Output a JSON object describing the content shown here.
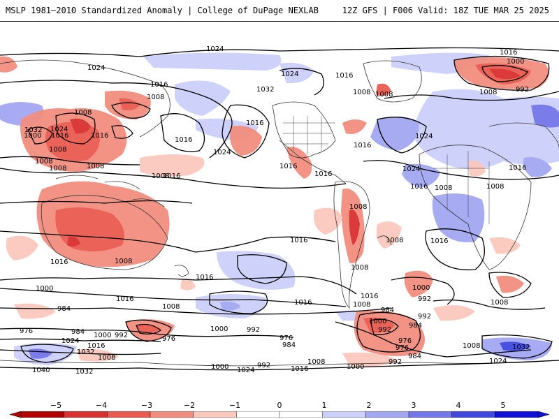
{
  "header": {
    "title_left": "MSLP 1981–2010 Standardized Anomaly | College of DuPage NEXLAB",
    "title_right": "12Z GFS | F006 Valid: 18Z TUE MAR 25 2025"
  },
  "map": {
    "contour_labels": {
      "l1": "1024",
      "l2": "1016",
      "l3": "1000",
      "l4": "1024",
      "l5": "1032",
      "l6": "1024",
      "l7": "1016",
      "l8": "1008",
      "l9": "1008",
      "l10": "1008",
      "l11": "1016",
      "l12": "992",
      "l13": "1008",
      "l14": "1016",
      "l15": "1008",
      "l16": "1032",
      "l17": "1024",
      "l18": "1016",
      "l19": "1000",
      "l20": "1016",
      "l21": "1008",
      "l22": "1008",
      "l23": "1008",
      "l24": "1016",
      "l25": "1024",
      "l26": "1016",
      "l27": "1016",
      "l28": "1024",
      "l29": "1016",
      "l30": "1016",
      "l31": "1008",
      "l32": "1008",
      "l33": "1016",
      "l34": "1008",
      "l35": "1016",
      "l36": "1024",
      "l37": "1008",
      "l38": "1016",
      "l39": "1016",
      "l40": "1008",
      "l41": "1016",
      "l42": "1016",
      "l43": "1008",
      "l44": "1000",
      "l45": "1016",
      "l46": "1008",
      "l47": "1000",
      "l48": "992",
      "l49": "984",
      "l50": "976",
      "l51": "984",
      "l52": "1000",
      "l53": "992",
      "l54": "1024",
      "l55": "1016",
      "l56": "1032",
      "l57": "1008",
      "l58": "976",
      "l59": "1040",
      "l60": "1032",
      "l61": "1000",
      "l62": "992",
      "l63": "976",
      "l64": "984",
      "l65": "1016",
      "l66": "1024",
      "l67": "1000",
      "l68": "992",
      "l69": "1016",
      "l70": "1008",
      "l71": "1008",
      "l72": "1008",
      "l73": "1000",
      "l74": "992",
      "l75": "984",
      "l76": "984",
      "l77": "976",
      "l78": "976",
      "l79": "984",
      "l80": "992",
      "l81": "1000",
      "l82": "992",
      "l83": "1008",
      "l84": "1008",
      "l85": "1032",
      "l86": "1024",
      "l87": "1016",
      "l88": "1008"
    }
  },
  "colorbar": {
    "ticks": [
      "−5",
      "−4",
      "−3",
      "−2",
      "−1",
      "0",
      "1",
      "2",
      "3",
      "4",
      "5"
    ],
    "colors": {
      "neg5": "#b40000",
      "neg4": "#d93030",
      "neg3": "#ea5a50",
      "neg2": "#f28e80",
      "neg1": "#fbc8bd",
      "zero": "#ffffff",
      "pos1": "#ccd0fb",
      "pos2": "#a3a7f2",
      "pos3": "#7376e8",
      "pos4": "#4048e0",
      "pos5": "#1010d8"
    }
  }
}
